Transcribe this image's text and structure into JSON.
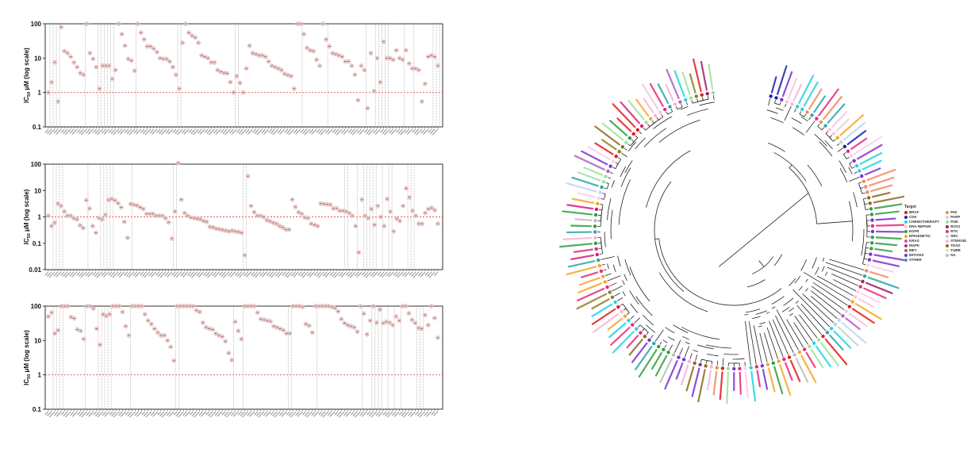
{
  "chart_data": [
    {
      "type": "scatter",
      "title": "",
      "ylabel_main": "IC",
      "ylabel_sub": "50",
      "ylabel_rest": " μM (log scale)",
      "yscale": "log",
      "ylim": [
        0.1,
        100
      ],
      "yticks": [
        "100",
        "10",
        "1",
        "0.1"
      ],
      "ytick_values": [
        100,
        10,
        1,
        0.1
      ],
      "reference_line": 1,
      "values": [
        1,
        2,
        7.5,
        0.55,
        80,
        16,
        14,
        11,
        7.5,
        5.5,
        3.7,
        3.3,
        100,
        14,
        9.5,
        5.5,
        1.3,
        6,
        6,
        6,
        2.5,
        4.5,
        100,
        50,
        23,
        9.5,
        8.5,
        4.3,
        100,
        55,
        35,
        22,
        22,
        19,
        15,
        10,
        9.5,
        9.5,
        8,
        5.5,
        3.3,
        1.3,
        28,
        100,
        55,
        45,
        40,
        28,
        12,
        11,
        10,
        7.5,
        7.5,
        4.5,
        4,
        3.7,
        3.6,
        2,
        1,
        3,
        1.9,
        1,
        5,
        23,
        14,
        13,
        12,
        12,
        11,
        8,
        6,
        5.5,
        5,
        4.5,
        3.5,
        3.2,
        3,
        1.3,
        100,
        100,
        50,
        20,
        17,
        16,
        9,
        6,
        100,
        35,
        22,
        14,
        13,
        12,
        11,
        8,
        8,
        6,
        3.3,
        0.6,
        6,
        4.5,
        0.35,
        14,
        1.1,
        10,
        2,
        30,
        10,
        10,
        9,
        17,
        10,
        9,
        17,
        7,
        5,
        5,
        4.5,
        0.55,
        1.8,
        11,
        12,
        11,
        6
      ],
      "divider_index": [
        1,
        2,
        3,
        4,
        12,
        16,
        17,
        18,
        19,
        20,
        21,
        28,
        41,
        42,
        59,
        60,
        80,
        88,
        100,
        103,
        104,
        105,
        106,
        107,
        112,
        115,
        121,
        122,
        123
      ]
    },
    {
      "type": "scatter",
      "title": "",
      "ylabel_main": "IC",
      "ylabel_sub": "50",
      "ylabel_rest": " μM (log scale)",
      "yscale": "log",
      "ylim": [
        0.01,
        100
      ],
      "yticks": [
        "100",
        "10",
        "1",
        "0.1",
        "0.01"
      ],
      "ytick_values": [
        100,
        10,
        1,
        0.1,
        0.01
      ],
      "reference_line": 1,
      "values": [
        1.1,
        0.45,
        0.6,
        3.2,
        2.6,
        1.6,
        1.1,
        1.1,
        0.9,
        0.8,
        0.48,
        0.38,
        4.3,
        2.1,
        0.45,
        0.25,
        0.9,
        0.8,
        1.2,
        4.4,
        4.8,
        4.3,
        3.3,
        2.3,
        0.65,
        0.16,
        3.1,
        2.9,
        2.7,
        2.3,
        2.0,
        1.3,
        1.3,
        1.3,
        1.1,
        1.1,
        1.1,
        0.9,
        0.62,
        0.15,
        1.6,
        110,
        4.5,
        1.4,
        1.1,
        0.95,
        0.9,
        0.85,
        0.8,
        0.7,
        0.65,
        0.42,
        0.4,
        0.36,
        0.34,
        0.32,
        0.3,
        0.28,
        0.3,
        0.28,
        0.27,
        0.25,
        0.035,
        35,
        2.6,
        1.5,
        1.1,
        1.1,
        1,
        0.75,
        0.68,
        0.6,
        0.55,
        0.45,
        0.4,
        0.33,
        0.33,
        4.5,
        2.4,
        1.5,
        1.3,
        0.95,
        0.9,
        0.55,
        0.5,
        0.45,
        3.2,
        3.1,
        3,
        2.9,
        2.1,
        2.1,
        1.7,
        1.7,
        1.6,
        1.4,
        1.1,
        0.45,
        0.045,
        4.5,
        1.1,
        0.9,
        2,
        0.5,
        2.6,
        1,
        0.45,
        4.8,
        1.6,
        0.28,
        0.85,
        0.7,
        2.6,
        12,
        5.5,
        1.7,
        1.1,
        0.55,
        0.55,
        1.4,
        2,
        2.2,
        1.8,
        0.55
      ],
      "divider_index": [
        2,
        3,
        4,
        5,
        13,
        17,
        18,
        19,
        20,
        21,
        27,
        40,
        41,
        62,
        63,
        94,
        95,
        98,
        100,
        101,
        102,
        103,
        104,
        106,
        108,
        109,
        114,
        115,
        116
      ]
    },
    {
      "type": "scatter",
      "title": "",
      "ylabel_main": "IC",
      "ylabel_sub": "50",
      "ylabel_rest": " μM (log scale)",
      "yscale": "log",
      "ylim": [
        0.1,
        100
      ],
      "yticks": [
        "100",
        "10",
        "1",
        "0.1"
      ],
      "ytick_values": [
        100,
        10,
        1,
        0.1
      ],
      "reference_line": 1,
      "values": [
        50,
        65,
        16,
        20,
        100,
        100,
        100,
        48,
        44,
        21,
        19,
        11,
        100,
        100,
        85,
        22,
        7.5,
        58,
        52,
        58,
        100,
        100,
        100,
        68,
        26,
        14,
        100,
        100,
        100,
        100,
        58,
        38,
        30,
        22,
        17,
        14,
        14,
        10,
        6.5,
        2.6,
        100,
        100,
        100,
        100,
        100,
        100,
        75,
        68,
        33,
        24,
        22,
        21,
        16,
        14,
        13,
        9.5,
        4.3,
        2.7,
        35,
        19,
        11,
        100,
        100,
        100,
        100,
        65,
        42,
        40,
        38,
        36,
        26,
        24,
        22,
        20,
        16,
        16,
        100,
        100,
        100,
        95,
        30,
        27,
        17,
        100,
        100,
        100,
        100,
        100,
        95,
        88,
        70,
        42,
        32,
        28,
        26,
        24,
        18,
        100,
        60,
        15,
        38,
        100,
        33,
        80,
        32,
        35,
        33,
        28,
        50,
        38,
        100,
        100,
        62,
        40,
        32,
        23,
        22,
        55,
        28,
        100,
        45,
        12
      ],
      "divider_index": [
        2,
        3,
        4,
        5,
        12,
        16,
        17,
        18,
        19,
        20,
        26,
        40,
        41,
        58,
        61,
        75,
        76,
        84,
        98,
        101,
        102,
        103,
        104,
        106,
        108,
        110,
        115,
        116,
        117
      ]
    }
  ],
  "legend": {
    "title": "Target",
    "items": [
      {
        "label": "BRAF",
        "color": "#e31a1c"
      },
      {
        "label": "CDK",
        "color": "#1f1fb4"
      },
      {
        "label": "CHEMOTHERAPY",
        "color": "#22d3e0"
      },
      {
        "label": "DNA REPAIR",
        "color": "#f7c6d9"
      },
      {
        "label": "EGFR",
        "color": "#2e9e3e"
      },
      {
        "label": "EPIGENETIC",
        "color": "#f5a623"
      },
      {
        "label": "KRAS",
        "color": "#b05cc6"
      },
      {
        "label": "MAPK",
        "color": "#d81b7a"
      },
      {
        "label": "MET",
        "color": "#8a7d1e"
      },
      {
        "label": "MITOSIS",
        "color": "#7b2fd6"
      },
      {
        "label": "OTHER",
        "color": "#2aa6a6"
      },
      {
        "label": "P53",
        "color": "#f08a5d"
      },
      {
        "label": "PARP",
        "color": "#bcd7f0"
      },
      {
        "label": "PI3K",
        "color": "#9be39b"
      },
      {
        "label": "ROS1",
        "color": "#9b1f6a"
      },
      {
        "label": "RTK",
        "color": "#e8287a"
      },
      {
        "label": "SRC",
        "color": "#b8d8c8"
      },
      {
        "label": "STEROID",
        "color": "#f4b6d2"
      },
      {
        "label": "TEAD",
        "color": "#8b6a1a"
      },
      {
        "label": "TUBB",
        "color": "#f9d0ef"
      },
      {
        "label": "NA",
        "color": "#bdbdbd"
      }
    ]
  },
  "tree": {
    "tip_targets": [
      "CDK",
      "CDK",
      "MITOSIS",
      "DNA REPAIR",
      "STEROID",
      "CHEMOTHERAPY",
      "CHEMOTHERAPY",
      "P53",
      "OTHER",
      "RTK",
      "P53",
      "OTHER",
      "DNA REPAIR",
      "DNA REPAIR",
      "EPIGENETIC",
      "PARP",
      "CDK",
      "RTK",
      "TUBB",
      "MITOSIS",
      "CHEMOTHERAPY",
      "CHEMOTHERAPY",
      "MITOSIS",
      "P53",
      "P53",
      "P53",
      "TEAD",
      "TEAD",
      "EGFR",
      "EGFR",
      "MITOSIS",
      "RTK",
      "MITOSIS",
      "EGFR",
      "EGFR",
      "EGFR",
      "MITOSIS",
      "MITOSIS",
      "TUBB",
      "P53",
      "OTHER",
      "ROS1",
      "RTK",
      "TUBB",
      "DNA REPAIR",
      "EPIGENETIC",
      "BRAF",
      "DNA REPAIR",
      "KRAS",
      "PARP",
      "SRC",
      "CHEMOTHERAPY",
      "OTHER",
      "BRAF",
      "PI3K",
      "CHEMOTHERAPY",
      "PI3K",
      "RTK",
      "EPIGENETIC",
      "NA",
      "BRAF",
      "RTK",
      "EPIGENETIC",
      "EGFR",
      "EPIGENETIC",
      "MITOSIS",
      "RTK",
      "CHEMOTHERAPY",
      "TUBB",
      "RTK",
      "MITOSIS",
      "PI3K",
      "BRAF",
      "P53",
      "STEROID",
      "TEAD",
      "MITOSIS",
      "TEAD",
      "STEROID",
      "MITOSIS",
      "MITOSIS",
      "NA",
      "EGFR",
      "EGFR",
      "EGFR",
      "OTHER",
      "MITOSIS",
      "TEAD",
      "RTK",
      "CHEMOTHERAPY",
      "RTK",
      "CHEMOTHERAPY",
      "EPIGENETIC",
      "STEROID",
      "BRAF",
      "CHEMOTHERAPY",
      "MET",
      "MET",
      "RTK",
      "EPIGENETIC",
      "EPIGENETIC",
      "RTK",
      "EPIGENETIC",
      "OTHER",
      "MAPK",
      "RTK",
      "EGFR",
      "STEROID",
      "OTHER",
      "EGFR",
      "NA",
      "EGFR",
      "MAPK",
      "EPIGENETIC",
      "TUBB",
      "PARP",
      "OTHER",
      "PI3K",
      "PI3K",
      "KRAS",
      "MITOSIS",
      "TUBB",
      "BRAF",
      "MET",
      "TEAD",
      "PI3K",
      "EGFR",
      "BRAF",
      "BRAF",
      "MAPK",
      "PI3K",
      "EPIGENETIC",
      "STEROID",
      "DNA REPAIR",
      "RTK",
      "OTHER",
      "STEROID",
      "KRAS",
      "CHEMOTHERAPY",
      "PI3K",
      "MET",
      "BRAF",
      "ROS1",
      "PI3K"
    ]
  }
}
